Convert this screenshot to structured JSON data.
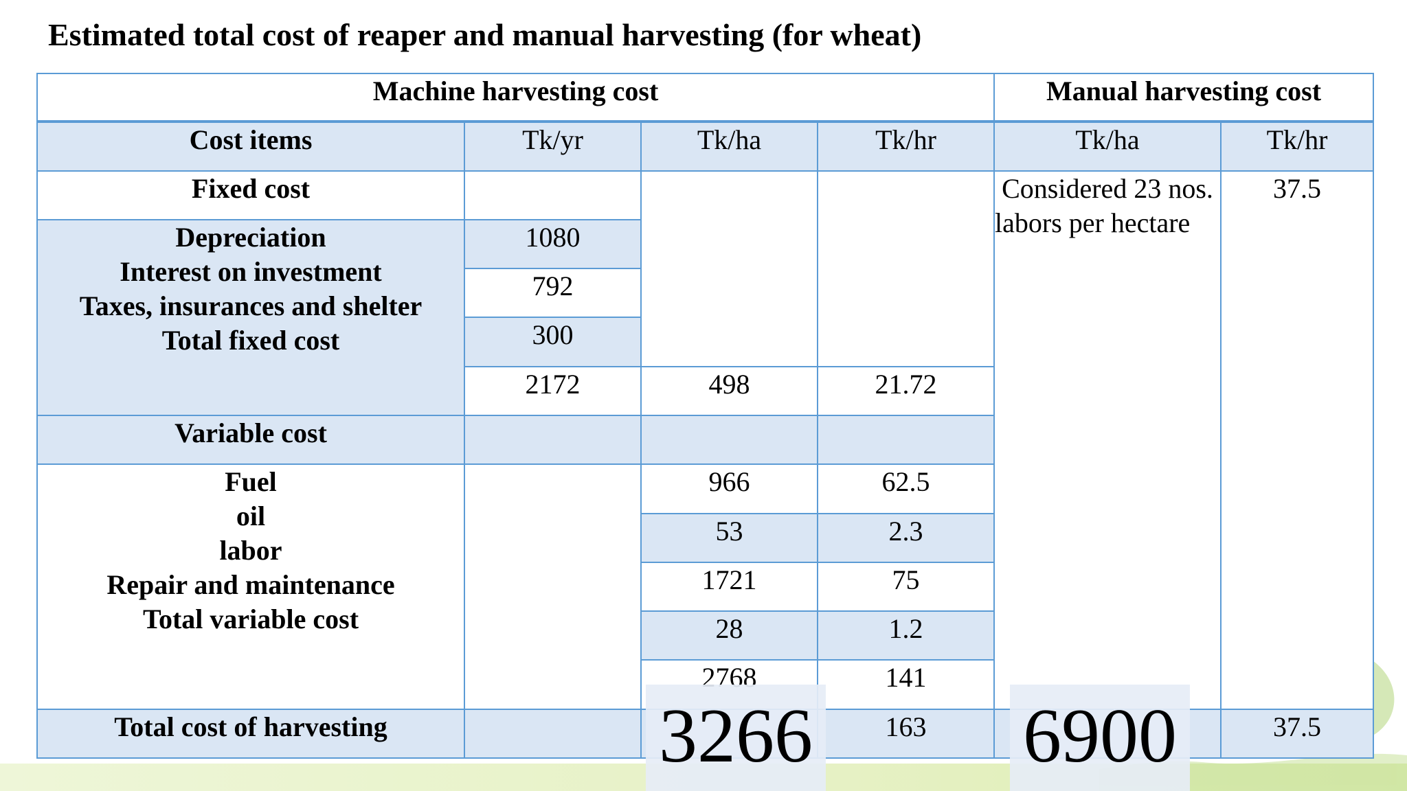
{
  "title": "Estimated total cost of reaper and manual harvesting (for wheat)",
  "sections": {
    "machine": "Machine harvesting cost",
    "manual": "Manual harvesting cost"
  },
  "headers": {
    "cost_items": "Cost items",
    "tk_yr": "Tk/yr",
    "tk_ha": "Tk/ha",
    "tk_hr": "Tk/hr",
    "manual_tk_ha": "Tk/ha",
    "manual_tk_hr": "Tk/hr"
  },
  "fixed": {
    "label": "Fixed cost",
    "items": [
      "Depreciation",
      "Interest on investment",
      "Taxes, insurances and shelter",
      "Total fixed cost"
    ],
    "tk_yr": [
      "1080",
      "792",
      "300",
      "2172"
    ],
    "total_tk_ha": "498",
    "total_tk_hr": "21.72"
  },
  "variable": {
    "label": "Variable cost",
    "items": [
      "Fuel",
      "oil",
      "labor",
      "Repair and maintenance",
      "Total variable cost"
    ],
    "tk_ha": [
      "966",
      "53",
      "1721",
      "28",
      "2768"
    ],
    "tk_hr": [
      "62.5",
      "2.3",
      "75",
      "1.2",
      "141"
    ]
  },
  "manual": {
    "note": "Considered 23 nos. labors per hectare",
    "tk_hr": "37.5"
  },
  "total": {
    "label": "Total cost of harvesting",
    "machine_tk_ha": "3266",
    "machine_tk_hr": "163",
    "manual_tk_ha": "6900",
    "manual_tk_hr": "37.5"
  }
}
